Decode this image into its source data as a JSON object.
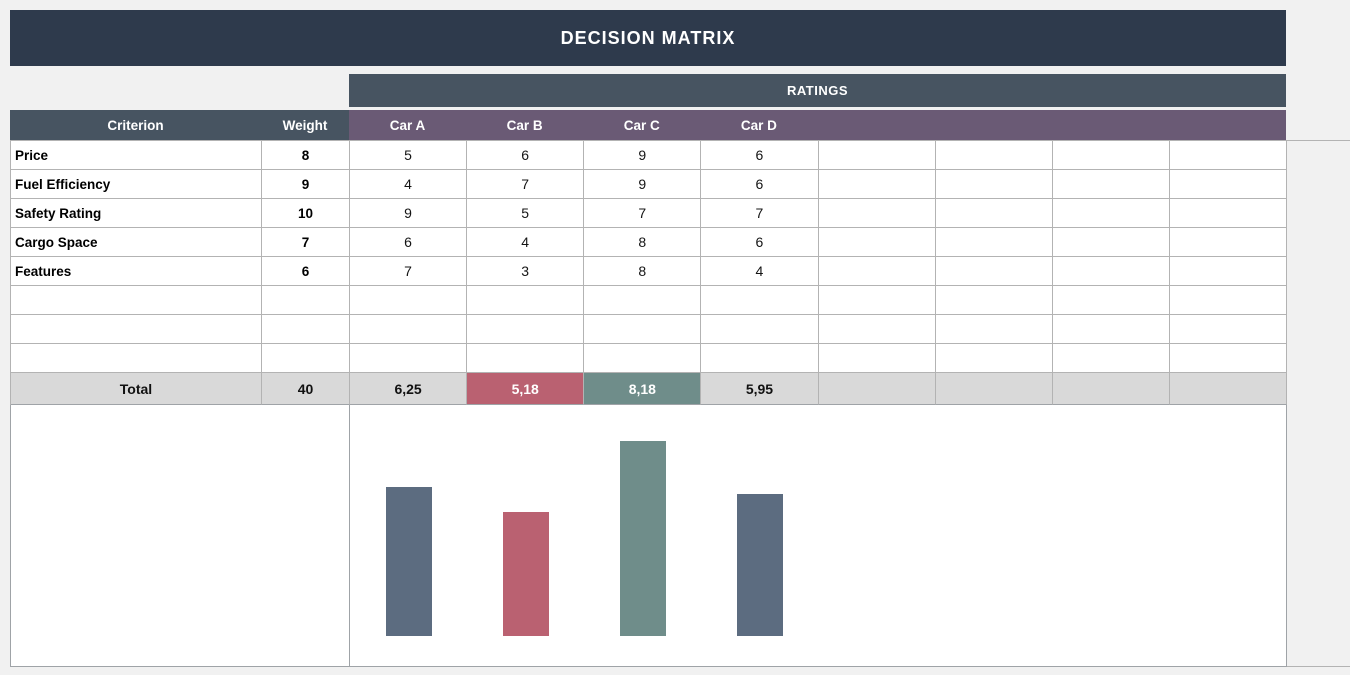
{
  "title": "DECISION MATRIX",
  "ratings_header": "RATINGS",
  "columns": {
    "criterion": "Criterion",
    "weight": "Weight"
  },
  "car_columns": [
    "Car A",
    "Car B",
    "Car C",
    "Car D",
    "",
    "",
    "",
    ""
  ],
  "rows": [
    {
      "criterion": "Price",
      "weight": "8",
      "ratings": [
        "5",
        "6",
        "9",
        "6"
      ]
    },
    {
      "criterion": "Fuel Efficiency",
      "weight": "9",
      "ratings": [
        "4",
        "7",
        "9",
        "6"
      ]
    },
    {
      "criterion": "Safety Rating",
      "weight": "10",
      "ratings": [
        "9",
        "5",
        "7",
        "7"
      ]
    },
    {
      "criterion": "Cargo Space",
      "weight": "7",
      "ratings": [
        "6",
        "4",
        "8",
        "6"
      ]
    },
    {
      "criterion": "Features",
      "weight": "6",
      "ratings": [
        "7",
        "3",
        "8",
        "4"
      ]
    }
  ],
  "empty_row_count": 3,
  "ratings_column_count": 8,
  "total": {
    "label": "Total",
    "weight": "40",
    "values": [
      "6,25",
      "5,18",
      "8,18",
      "5,95"
    ],
    "highlights": [
      null,
      "lowest",
      "highest",
      null
    ]
  },
  "chart_data": {
    "type": "bar",
    "categories": [
      "Car A",
      "Car B",
      "Car C",
      "Car D"
    ],
    "values": [
      6.25,
      5.18,
      8.18,
      5.95
    ],
    "title": "",
    "xlabel": "",
    "ylabel": "",
    "ylim": [
      0,
      10
    ],
    "grid": false,
    "axes_visible": false,
    "legend": "none",
    "bar_colors": [
      "#5C6C80",
      "#BA6171",
      "#6F8D8A",
      "#5C6C80"
    ]
  },
  "colors": {
    "page_bg": "#F1F1F1",
    "title_bar_bg": "#2E3A4C",
    "header_bg": "#475461",
    "purple_bg": "#6A5A75",
    "total_bg": "#D9D9D9",
    "lowest_bg": "#BA6171",
    "highest_bg": "#6F8D8A",
    "gridline_inner": "#B3B3B3",
    "gridline_outer": "#9FA3A7"
  }
}
